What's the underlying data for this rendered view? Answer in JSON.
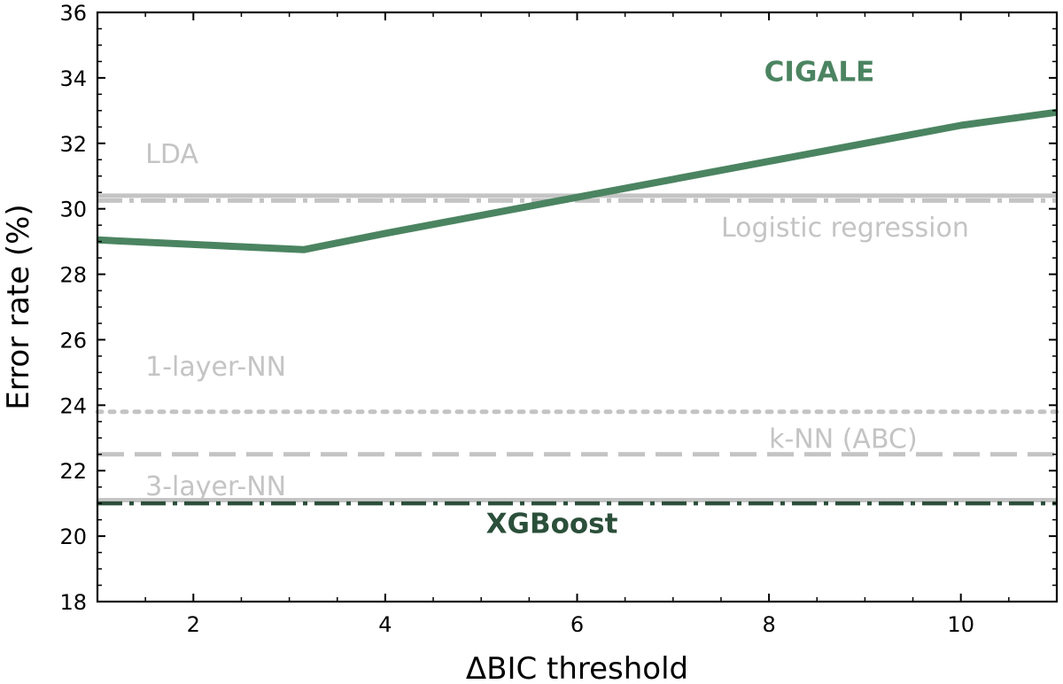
{
  "chart_data": {
    "type": "line",
    "title": "",
    "xlabel": "ΔBIC threshold",
    "ylabel": "Error rate (%)",
    "xlim": [
      1,
      11
    ],
    "ylim": [
      18,
      36
    ],
    "xticks": [
      2,
      4,
      6,
      8,
      10
    ],
    "yticks": [
      18,
      20,
      22,
      24,
      26,
      28,
      30,
      32,
      34,
      36
    ],
    "grid": false,
    "legend": "none",
    "series": [
      {
        "name": "CIGALE",
        "color": "#4b8461",
        "x": [
          1,
          3.15,
          4,
          6,
          8,
          10,
          11
        ],
        "y": [
          29.05,
          28.75,
          29.25,
          30.35,
          31.45,
          32.55,
          32.95
        ]
      }
    ],
    "reference_lines": [
      {
        "name": "LDA",
        "y": 30.4,
        "style": "solid",
        "color": "#c4c4c4"
      },
      {
        "name": "Logistic regression",
        "y": 30.25,
        "style": "dashdot",
        "color": "#c4c4c4"
      },
      {
        "name": "1-layer-NN",
        "y": 23.8,
        "style": "dotted",
        "color": "#c4c4c4"
      },
      {
        "name": "k-NN (ABC)",
        "y": 22.5,
        "style": "dashed",
        "color": "#c4c4c4"
      },
      {
        "name": "3-layer-NN",
        "y": 21.1,
        "style": "solid",
        "color": "#c4c4c4"
      },
      {
        "name": "XGBoost",
        "y": 21.0,
        "style": "dashdot",
        "color": "#2b4f3a"
      }
    ],
    "annotations": [
      {
        "text": "CIGALE",
        "x": 7.95,
        "y": 33.9,
        "color": "#4b8461",
        "bold": true
      },
      {
        "text": "LDA",
        "x": 1.5,
        "y": 31.4,
        "color": "#c4c4c4",
        "bold": false
      },
      {
        "text": "Logistic regression",
        "x": 7.5,
        "y": 29.15,
        "color": "#c4c4c4",
        "bold": false
      },
      {
        "text": "1-layer-NN",
        "x": 1.5,
        "y": 24.9,
        "color": "#c4c4c4",
        "bold": false
      },
      {
        "text": "k-NN (ABC)",
        "x": 8.0,
        "y": 22.7,
        "color": "#c4c4c4",
        "bold": false
      },
      {
        "text": "3-layer-NN",
        "x": 1.5,
        "y": 21.25,
        "color": "#c4c4c4",
        "bold": false
      },
      {
        "text": "XGBoost",
        "x": 5.05,
        "y": 20.1,
        "color": "#2b4f3a",
        "bold": true
      }
    ]
  }
}
